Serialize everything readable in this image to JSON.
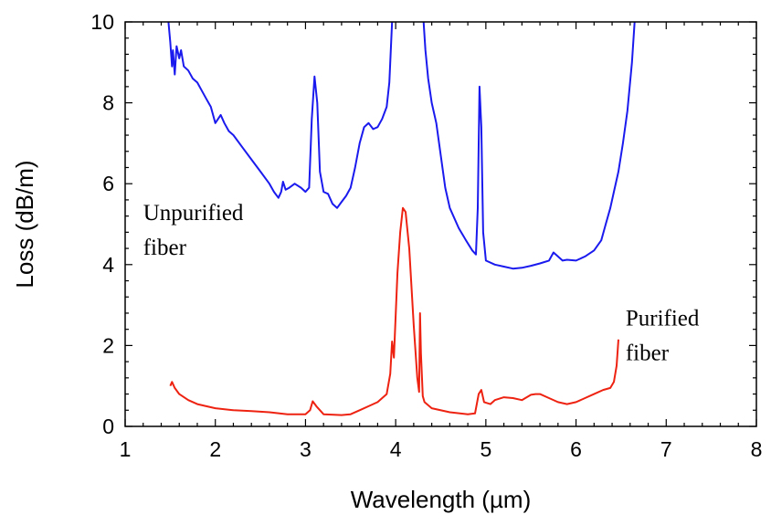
{
  "chart_data": {
    "type": "line",
    "title": "",
    "xlabel": "Wavelength  (µm)",
    "ylabel": "Loss (dB/m)",
    "xlim": [
      1,
      8
    ],
    "ylim": [
      0,
      10
    ],
    "x_ticks": [
      "1",
      "2",
      "3",
      "4",
      "5",
      "6",
      "7",
      "8"
    ],
    "y_ticks": [
      "0",
      "2",
      "4",
      "6",
      "8",
      "10"
    ],
    "grid": false,
    "legend": "none",
    "annotations": [
      {
        "id": "unpurified",
        "lines": [
          "Unpurified",
          "fiber"
        ],
        "x": 1.2,
        "y": 5.1
      },
      {
        "id": "purified",
        "lines": [
          "Purified",
          "fiber"
        ],
        "x": 6.55,
        "y": 2.5
      }
    ],
    "series": [
      {
        "color": "#1a1aee",
        "points": [
          [
            1.48,
            10.0
          ],
          [
            1.5,
            9.5
          ],
          [
            1.52,
            8.9
          ],
          [
            1.53,
            9.3
          ],
          [
            1.55,
            8.7
          ],
          [
            1.57,
            9.4
          ],
          [
            1.6,
            9.1
          ],
          [
            1.62,
            9.3
          ],
          [
            1.65,
            8.9
          ],
          [
            1.7,
            8.8
          ],
          [
            1.75,
            8.6
          ],
          [
            1.8,
            8.5
          ],
          [
            1.85,
            8.3
          ],
          [
            1.9,
            8.1
          ],
          [
            1.95,
            7.9
          ],
          [
            2.0,
            7.5
          ],
          [
            2.03,
            7.6
          ],
          [
            2.06,
            7.7
          ],
          [
            2.1,
            7.5
          ],
          [
            2.15,
            7.3
          ],
          [
            2.2,
            7.2
          ],
          [
            2.3,
            6.9
          ],
          [
            2.4,
            6.6
          ],
          [
            2.5,
            6.3
          ],
          [
            2.6,
            6.0
          ],
          [
            2.65,
            5.8
          ],
          [
            2.7,
            5.65
          ],
          [
            2.73,
            5.8
          ],
          [
            2.75,
            6.05
          ],
          [
            2.78,
            5.85
          ],
          [
            2.82,
            5.9
          ],
          [
            2.88,
            6.0
          ],
          [
            2.95,
            5.9
          ],
          [
            3.0,
            5.8
          ],
          [
            3.04,
            5.9
          ],
          [
            3.07,
            7.6
          ],
          [
            3.1,
            8.65
          ],
          [
            3.13,
            8.0
          ],
          [
            3.16,
            6.3
          ],
          [
            3.2,
            5.8
          ],
          [
            3.25,
            5.75
          ],
          [
            3.3,
            5.5
          ],
          [
            3.35,
            5.4
          ],
          [
            3.4,
            5.55
          ],
          [
            3.45,
            5.7
          ],
          [
            3.5,
            5.9
          ],
          [
            3.55,
            6.4
          ],
          [
            3.6,
            7.0
          ],
          [
            3.65,
            7.4
          ],
          [
            3.7,
            7.5
          ],
          [
            3.75,
            7.35
          ],
          [
            3.8,
            7.4
          ],
          [
            3.85,
            7.6
          ],
          [
            3.9,
            7.9
          ],
          [
            3.93,
            8.5
          ],
          [
            3.95,
            9.5
          ],
          [
            3.96,
            10.0
          ],
          [
            null,
            null
          ],
          [
            4.31,
            10.0
          ],
          [
            4.33,
            9.3
          ],
          [
            4.36,
            8.6
          ],
          [
            4.4,
            8.0
          ],
          [
            4.42,
            7.8
          ],
          [
            4.45,
            7.5
          ],
          [
            4.5,
            6.7
          ],
          [
            4.55,
            5.9
          ],
          [
            4.6,
            5.4
          ],
          [
            4.7,
            4.9
          ],
          [
            4.78,
            4.6
          ],
          [
            4.85,
            4.35
          ],
          [
            4.89,
            4.25
          ],
          [
            4.91,
            5.4
          ],
          [
            4.93,
            8.4
          ],
          [
            4.95,
            7.4
          ],
          [
            4.97,
            4.8
          ],
          [
            5.0,
            4.1
          ],
          [
            5.1,
            4.0
          ],
          [
            5.2,
            3.95
          ],
          [
            5.3,
            3.9
          ],
          [
            5.4,
            3.92
          ],
          [
            5.5,
            3.97
          ],
          [
            5.6,
            4.03
          ],
          [
            5.7,
            4.1
          ],
          [
            5.75,
            4.3
          ],
          [
            5.8,
            4.2
          ],
          [
            5.85,
            4.1
          ],
          [
            5.9,
            4.12
          ],
          [
            6.0,
            4.1
          ],
          [
            6.1,
            4.2
          ],
          [
            6.2,
            4.35
          ],
          [
            6.28,
            4.6
          ],
          [
            6.33,
            5.0
          ],
          [
            6.38,
            5.4
          ],
          [
            6.42,
            5.8
          ],
          [
            6.47,
            6.3
          ],
          [
            6.52,
            7.0
          ],
          [
            6.57,
            7.8
          ],
          [
            6.62,
            9.0
          ],
          [
            6.65,
            10.0
          ]
        ]
      },
      {
        "color": "#ee2211",
        "points": [
          [
            1.5,
            1.0
          ],
          [
            1.52,
            1.1
          ],
          [
            1.55,
            0.95
          ],
          [
            1.6,
            0.8
          ],
          [
            1.7,
            0.65
          ],
          [
            1.8,
            0.55
          ],
          [
            1.9,
            0.5
          ],
          [
            2.0,
            0.45
          ],
          [
            2.2,
            0.4
          ],
          [
            2.4,
            0.38
          ],
          [
            2.6,
            0.35
          ],
          [
            2.8,
            0.3
          ],
          [
            3.0,
            0.3
          ],
          [
            3.05,
            0.4
          ],
          [
            3.08,
            0.62
          ],
          [
            3.12,
            0.5
          ],
          [
            3.2,
            0.3
          ],
          [
            3.4,
            0.28
          ],
          [
            3.5,
            0.3
          ],
          [
            3.6,
            0.4
          ],
          [
            3.7,
            0.5
          ],
          [
            3.8,
            0.6
          ],
          [
            3.9,
            0.8
          ],
          [
            3.94,
            1.3
          ],
          [
            3.96,
            2.1
          ],
          [
            3.98,
            1.7
          ],
          [
            4.02,
            3.8
          ],
          [
            4.05,
            4.8
          ],
          [
            4.08,
            5.4
          ],
          [
            4.11,
            5.3
          ],
          [
            4.15,
            4.4
          ],
          [
            4.2,
            2.5
          ],
          [
            4.24,
            1.2
          ],
          [
            4.26,
            0.85
          ],
          [
            4.27,
            2.8
          ],
          [
            4.28,
            1.8
          ],
          [
            4.3,
            0.75
          ],
          [
            4.32,
            0.6
          ],
          [
            4.4,
            0.45
          ],
          [
            4.6,
            0.35
          ],
          [
            4.8,
            0.3
          ],
          [
            4.88,
            0.32
          ],
          [
            4.92,
            0.8
          ],
          [
            4.95,
            0.9
          ],
          [
            4.98,
            0.6
          ],
          [
            5.05,
            0.55
          ],
          [
            5.1,
            0.65
          ],
          [
            5.2,
            0.72
          ],
          [
            5.3,
            0.7
          ],
          [
            5.4,
            0.65
          ],
          [
            5.5,
            0.78
          ],
          [
            5.55,
            0.8
          ],
          [
            5.6,
            0.8
          ],
          [
            5.7,
            0.7
          ],
          [
            5.8,
            0.6
          ],
          [
            5.9,
            0.55
          ],
          [
            6.0,
            0.6
          ],
          [
            6.1,
            0.7
          ],
          [
            6.2,
            0.8
          ],
          [
            6.3,
            0.9
          ],
          [
            6.38,
            0.95
          ],
          [
            6.42,
            1.1
          ],
          [
            6.45,
            1.5
          ],
          [
            6.47,
            2.15
          ]
        ]
      }
    ]
  }
}
